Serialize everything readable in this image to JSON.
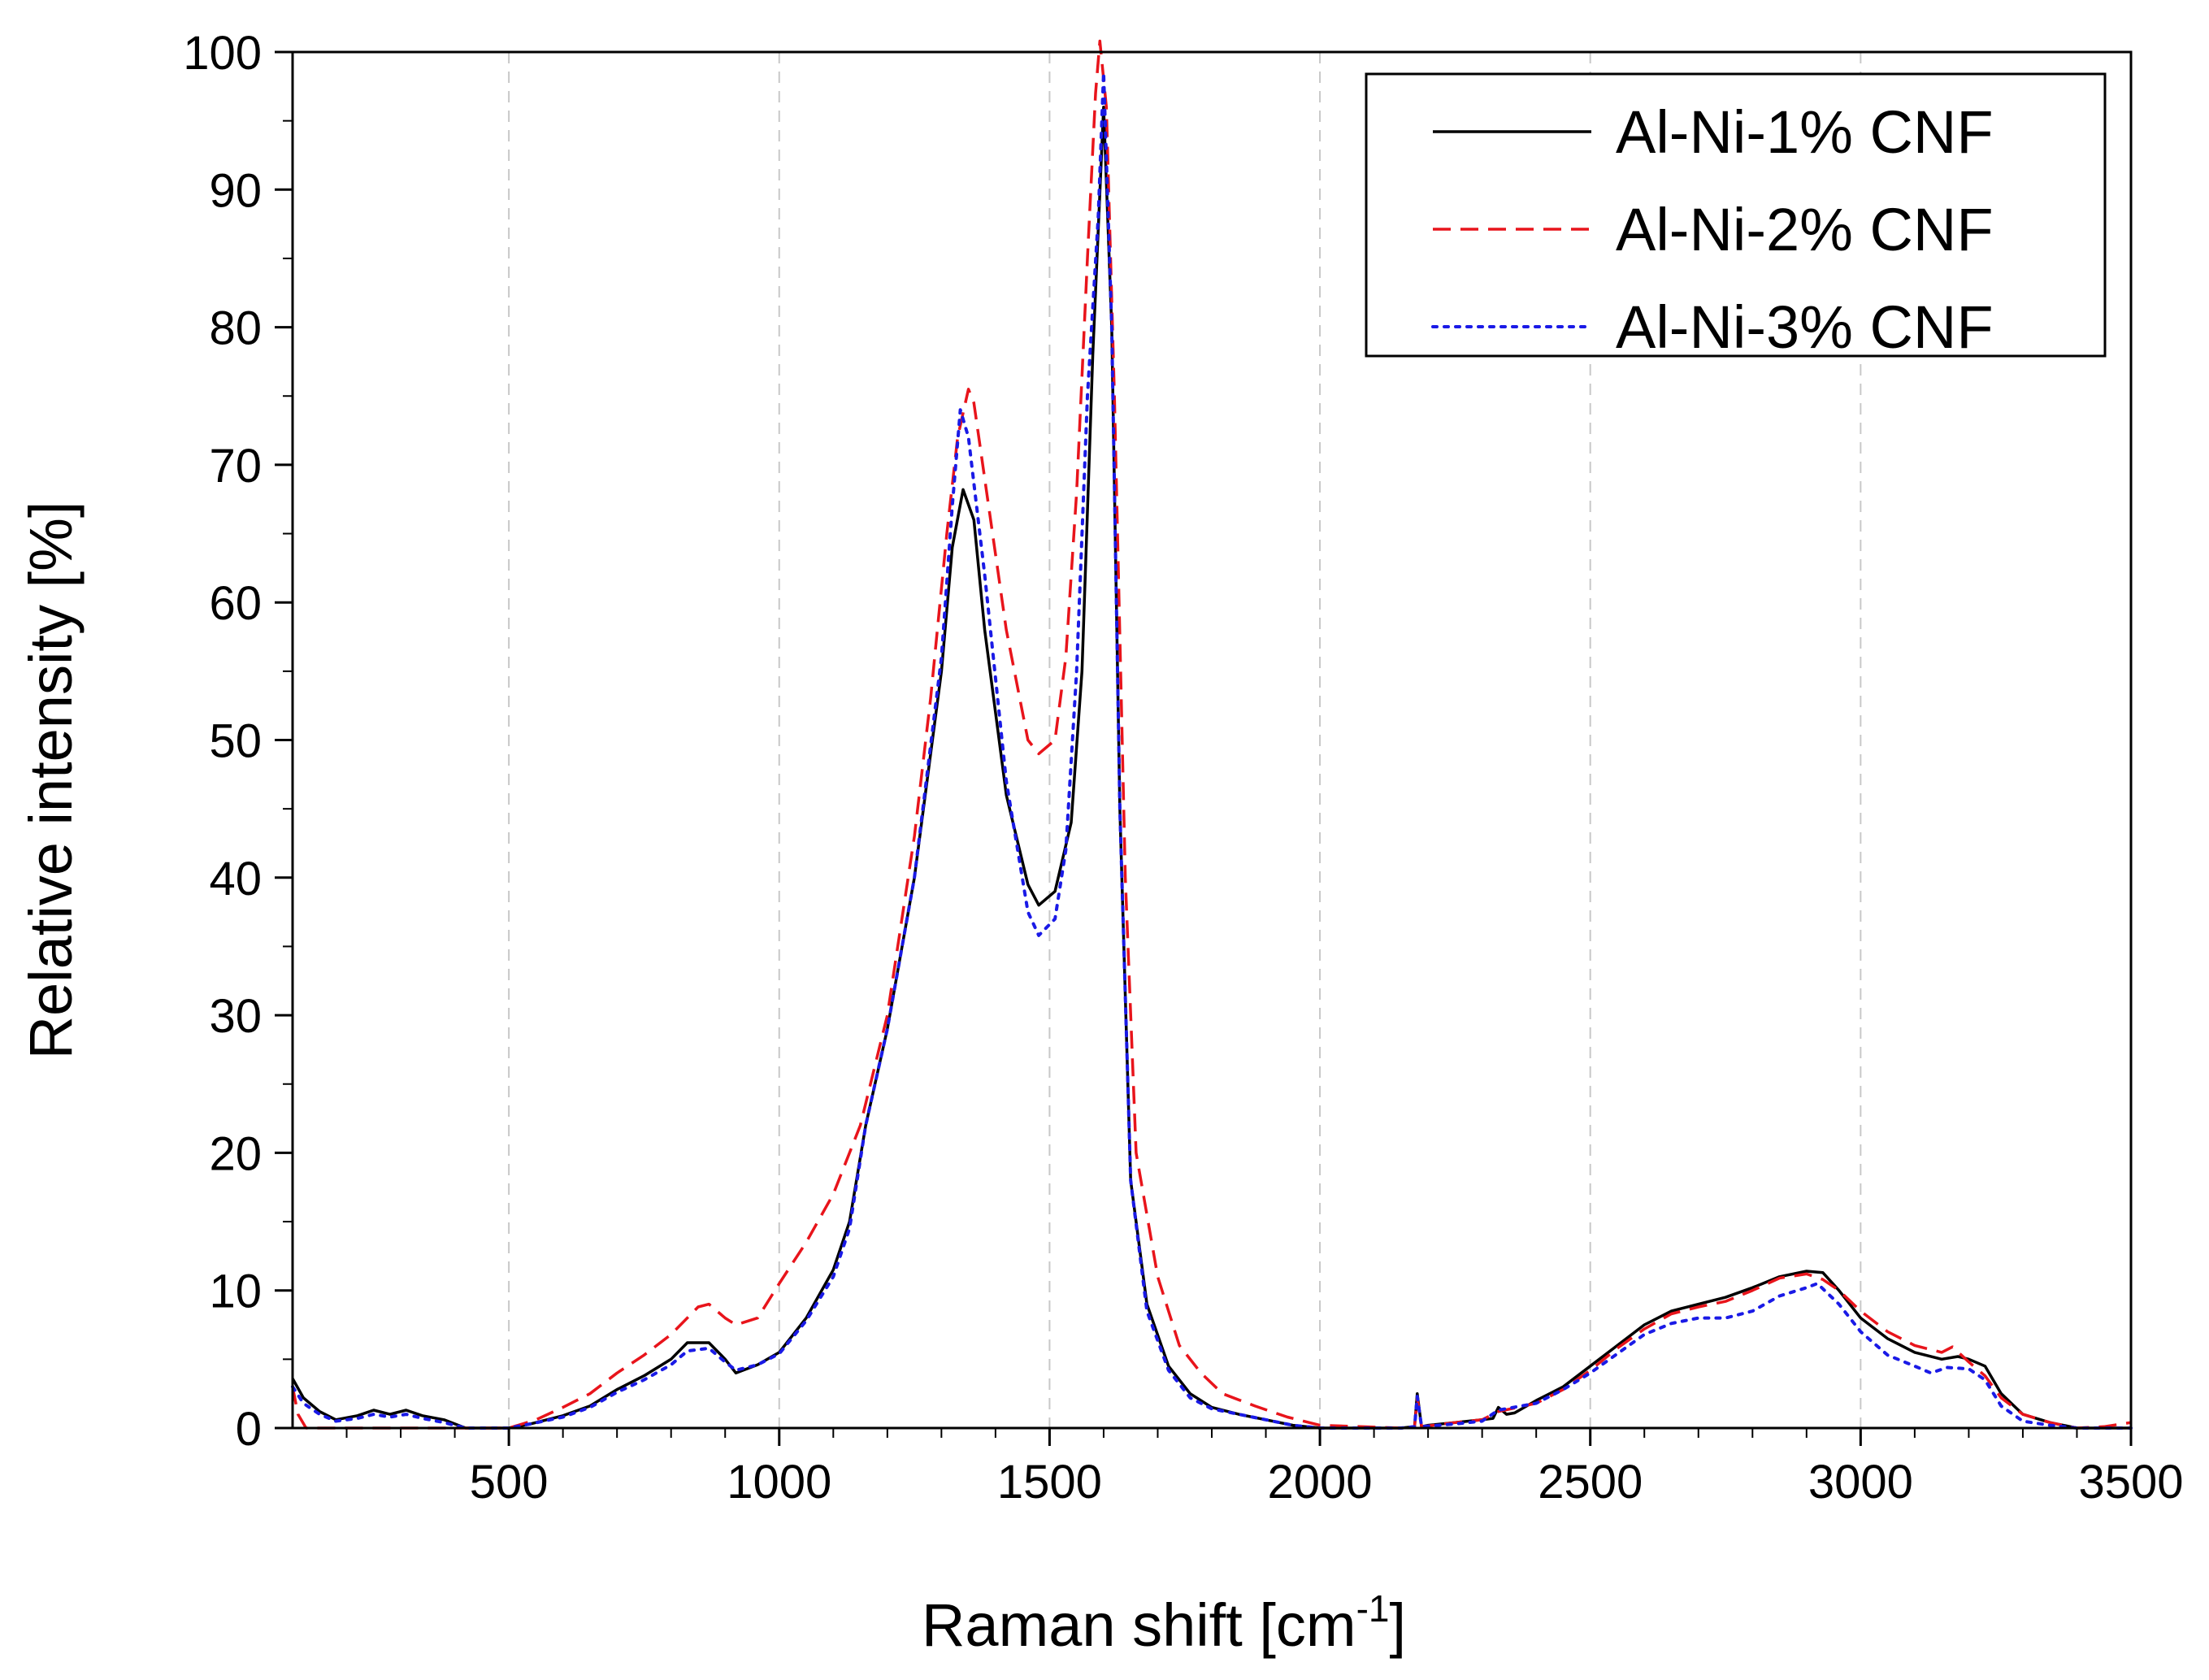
{
  "chart_data": {
    "type": "line",
    "xlabel": "Raman shift [cm",
    "xlabel_superscript": "-1",
    "xlabel_suffix": "]",
    "ylabel": "Relative intensity [%]",
    "xlim": [
      100,
      3500
    ],
    "ylim": [
      0,
      100
    ],
    "xticks": [
      500,
      1000,
      1500,
      2000,
      2500,
      3000,
      3500
    ],
    "yticks": [
      0,
      10,
      20,
      30,
      40,
      50,
      60,
      70,
      80,
      90,
      100
    ],
    "grid": "vertical dashed",
    "legend_position": "top-right",
    "series": [
      {
        "name": "Al-Ni-1% CNF",
        "color": "#000000",
        "style": "solid",
        "points": [
          [
            100,
            3.6
          ],
          [
            120,
            2.2
          ],
          [
            150,
            1.2
          ],
          [
            180,
            0.6
          ],
          [
            220,
            0.9
          ],
          [
            250,
            1.3
          ],
          [
            280,
            1.0
          ],
          [
            310,
            1.3
          ],
          [
            340,
            0.9
          ],
          [
            380,
            0.6
          ],
          [
            420,
            0.0
          ],
          [
            500,
            0.0
          ],
          [
            540,
            0.3
          ],
          [
            600,
            0.9
          ],
          [
            650,
            1.6
          ],
          [
            700,
            2.8
          ],
          [
            750,
            3.8
          ],
          [
            800,
            5.0
          ],
          [
            830,
            6.2
          ],
          [
            870,
            6.2
          ],
          [
            900,
            5.0
          ],
          [
            920,
            4.0
          ],
          [
            960,
            4.6
          ],
          [
            1000,
            5.5
          ],
          [
            1050,
            8.0
          ],
          [
            1100,
            11.5
          ],
          [
            1130,
            15.0
          ],
          [
            1160,
            22.0
          ],
          [
            1200,
            29.0
          ],
          [
            1250,
            40.0
          ],
          [
            1300,
            55.0
          ],
          [
            1320,
            64.0
          ],
          [
            1340,
            68.2
          ],
          [
            1360,
            66.0
          ],
          [
            1380,
            58.0
          ],
          [
            1420,
            46.0
          ],
          [
            1460,
            39.5
          ],
          [
            1480,
            38.0
          ],
          [
            1510,
            39.0
          ],
          [
            1540,
            44.0
          ],
          [
            1560,
            55.0
          ],
          [
            1580,
            78.0
          ],
          [
            1600,
            96.0
          ],
          [
            1615,
            80.0
          ],
          [
            1630,
            45.0
          ],
          [
            1650,
            18.0
          ],
          [
            1680,
            9.0
          ],
          [
            1720,
            4.5
          ],
          [
            1760,
            2.5
          ],
          [
            1800,
            1.5
          ],
          [
            1850,
            1.0
          ],
          [
            1900,
            0.6
          ],
          [
            1950,
            0.2
          ],
          [
            2000,
            0.0
          ],
          [
            2150,
            0.0
          ],
          [
            2175,
            0.1
          ],
          [
            2180,
            2.5
          ],
          [
            2188,
            0.1
          ],
          [
            2200,
            0.2
          ],
          [
            2250,
            0.4
          ],
          [
            2300,
            0.6
          ],
          [
            2320,
            0.7
          ],
          [
            2330,
            1.5
          ],
          [
            2345,
            1.0
          ],
          [
            2360,
            1.1
          ],
          [
            2400,
            2.0
          ],
          [
            2450,
            3.0
          ],
          [
            2500,
            4.5
          ],
          [
            2550,
            6.0
          ],
          [
            2600,
            7.5
          ],
          [
            2650,
            8.5
          ],
          [
            2700,
            9.0
          ],
          [
            2750,
            9.5
          ],
          [
            2800,
            10.2
          ],
          [
            2850,
            11.0
          ],
          [
            2900,
            11.4
          ],
          [
            2930,
            11.3
          ],
          [
            2960,
            10.0
          ],
          [
            3000,
            8.0
          ],
          [
            3050,
            6.5
          ],
          [
            3100,
            5.5
          ],
          [
            3150,
            5.0
          ],
          [
            3180,
            5.2
          ],
          [
            3200,
            5.0
          ],
          [
            3230,
            4.5
          ],
          [
            3260,
            2.5
          ],
          [
            3300,
            1.0
          ],
          [
            3350,
            0.4
          ],
          [
            3400,
            0.0
          ],
          [
            3500,
            0.0
          ]
        ]
      },
      {
        "name": "Al-Ni-2% CNF",
        "color": "#e8141b",
        "style": "dashed",
        "points": [
          [
            100,
            3.0
          ],
          [
            110,
            1.0
          ],
          [
            125,
            0.0
          ],
          [
            300,
            0.0
          ],
          [
            500,
            0.0
          ],
          [
            550,
            0.6
          ],
          [
            600,
            1.5
          ],
          [
            650,
            2.5
          ],
          [
            700,
            4.0
          ],
          [
            750,
            5.3
          ],
          [
            800,
            6.8
          ],
          [
            850,
            8.8
          ],
          [
            870,
            9.0
          ],
          [
            900,
            8.0
          ],
          [
            920,
            7.5
          ],
          [
            960,
            8.0
          ],
          [
            1000,
            10.5
          ],
          [
            1050,
            13.5
          ],
          [
            1100,
            17.0
          ],
          [
            1150,
            22.0
          ],
          [
            1200,
            30.0
          ],
          [
            1250,
            43.0
          ],
          [
            1280,
            53.0
          ],
          [
            1310,
            65.0
          ],
          [
            1330,
            72.0
          ],
          [
            1350,
            75.5
          ],
          [
            1360,
            74.5
          ],
          [
            1380,
            69.0
          ],
          [
            1420,
            58.0
          ],
          [
            1460,
            50.0
          ],
          [
            1480,
            49.0
          ],
          [
            1510,
            50.0
          ],
          [
            1530,
            56.0
          ],
          [
            1550,
            68.0
          ],
          [
            1570,
            85.0
          ],
          [
            1585,
            97.0
          ],
          [
            1593,
            100.8
          ],
          [
            1605,
            96.0
          ],
          [
            1620,
            75.0
          ],
          [
            1640,
            40.0
          ],
          [
            1660,
            20.0
          ],
          [
            1700,
            11.0
          ],
          [
            1740,
            6.0
          ],
          [
            1780,
            4.0
          ],
          [
            1820,
            2.5
          ],
          [
            1880,
            1.6
          ],
          [
            1940,
            0.8
          ],
          [
            2000,
            0.2
          ],
          [
            2150,
            0.0
          ],
          [
            2175,
            0.1
          ],
          [
            2180,
            2.2
          ],
          [
            2188,
            0.1
          ],
          [
            2250,
            0.4
          ],
          [
            2300,
            0.6
          ],
          [
            2330,
            1.2
          ],
          [
            2400,
            1.8
          ],
          [
            2450,
            2.8
          ],
          [
            2500,
            4.2
          ],
          [
            2550,
            5.8
          ],
          [
            2600,
            7.2
          ],
          [
            2650,
            8.3
          ],
          [
            2700,
            8.8
          ],
          [
            2750,
            9.2
          ],
          [
            2800,
            10.0
          ],
          [
            2850,
            10.9
          ],
          [
            2900,
            11.2
          ],
          [
            2930,
            10.8
          ],
          [
            2960,
            10.0
          ],
          [
            3000,
            8.5
          ],
          [
            3050,
            7.0
          ],
          [
            3100,
            6.0
          ],
          [
            3150,
            5.5
          ],
          [
            3170,
            5.9
          ],
          [
            3200,
            4.8
          ],
          [
            3230,
            3.8
          ],
          [
            3260,
            2.2
          ],
          [
            3300,
            1.0
          ],
          [
            3350,
            0.4
          ],
          [
            3400,
            0.0
          ],
          [
            3450,
            0.1
          ],
          [
            3500,
            0.4
          ]
        ]
      },
      {
        "name": "Al-Ni-3% CNF",
        "color": "#1a1ae6",
        "style": "dotted",
        "points": [
          [
            100,
            3.0
          ],
          [
            120,
            1.8
          ],
          [
            150,
            1.0
          ],
          [
            180,
            0.5
          ],
          [
            220,
            0.7
          ],
          [
            250,
            1.0
          ],
          [
            280,
            0.8
          ],
          [
            310,
            1.0
          ],
          [
            340,
            0.7
          ],
          [
            380,
            0.4
          ],
          [
            420,
            0.0
          ],
          [
            500,
            0.0
          ],
          [
            540,
            0.3
          ],
          [
            600,
            0.8
          ],
          [
            650,
            1.5
          ],
          [
            700,
            2.6
          ],
          [
            750,
            3.5
          ],
          [
            800,
            4.6
          ],
          [
            830,
            5.6
          ],
          [
            870,
            5.8
          ],
          [
            900,
            4.8
          ],
          [
            920,
            4.2
          ],
          [
            960,
            4.6
          ],
          [
            1000,
            5.4
          ],
          [
            1050,
            7.8
          ],
          [
            1100,
            11.0
          ],
          [
            1130,
            14.5
          ],
          [
            1160,
            22.0
          ],
          [
            1200,
            29.0
          ],
          [
            1250,
            40.0
          ],
          [
            1300,
            56.0
          ],
          [
            1320,
            67.0
          ],
          [
            1335,
            74.0
          ],
          [
            1350,
            72.0
          ],
          [
            1380,
            62.0
          ],
          [
            1420,
            47.0
          ],
          [
            1460,
            37.5
          ],
          [
            1480,
            35.8
          ],
          [
            1510,
            37.0
          ],
          [
            1530,
            42.0
          ],
          [
            1550,
            55.0
          ],
          [
            1570,
            75.0
          ],
          [
            1590,
            88.0
          ],
          [
            1600,
            98.5
          ],
          [
            1615,
            80.0
          ],
          [
            1630,
            45.0
          ],
          [
            1650,
            18.0
          ],
          [
            1680,
            8.5
          ],
          [
            1720,
            4.2
          ],
          [
            1760,
            2.2
          ],
          [
            1800,
            1.4
          ],
          [
            1850,
            1.0
          ],
          [
            1900,
            0.6
          ],
          [
            1950,
            0.2
          ],
          [
            2000,
            0.0
          ],
          [
            2150,
            0.0
          ],
          [
            2175,
            0.1
          ],
          [
            2180,
            2.3
          ],
          [
            2188,
            0.1
          ],
          [
            2250,
            0.3
          ],
          [
            2300,
            0.5
          ],
          [
            2330,
            1.3
          ],
          [
            2400,
            1.8
          ],
          [
            2450,
            2.8
          ],
          [
            2500,
            4.0
          ],
          [
            2550,
            5.4
          ],
          [
            2600,
            6.8
          ],
          [
            2650,
            7.6
          ],
          [
            2700,
            8.0
          ],
          [
            2750,
            8.0
          ],
          [
            2800,
            8.5
          ],
          [
            2850,
            9.6
          ],
          [
            2900,
            10.2
          ],
          [
            2920,
            10.5
          ],
          [
            2960,
            9.0
          ],
          [
            3000,
            7.0
          ],
          [
            3050,
            5.3
          ],
          [
            3100,
            4.5
          ],
          [
            3130,
            4.0
          ],
          [
            3160,
            4.4
          ],
          [
            3200,
            4.3
          ],
          [
            3230,
            3.5
          ],
          [
            3260,
            1.6
          ],
          [
            3300,
            0.5
          ],
          [
            3350,
            0.2
          ],
          [
            3400,
            0.0
          ],
          [
            3500,
            0.0
          ]
        ]
      }
    ]
  }
}
